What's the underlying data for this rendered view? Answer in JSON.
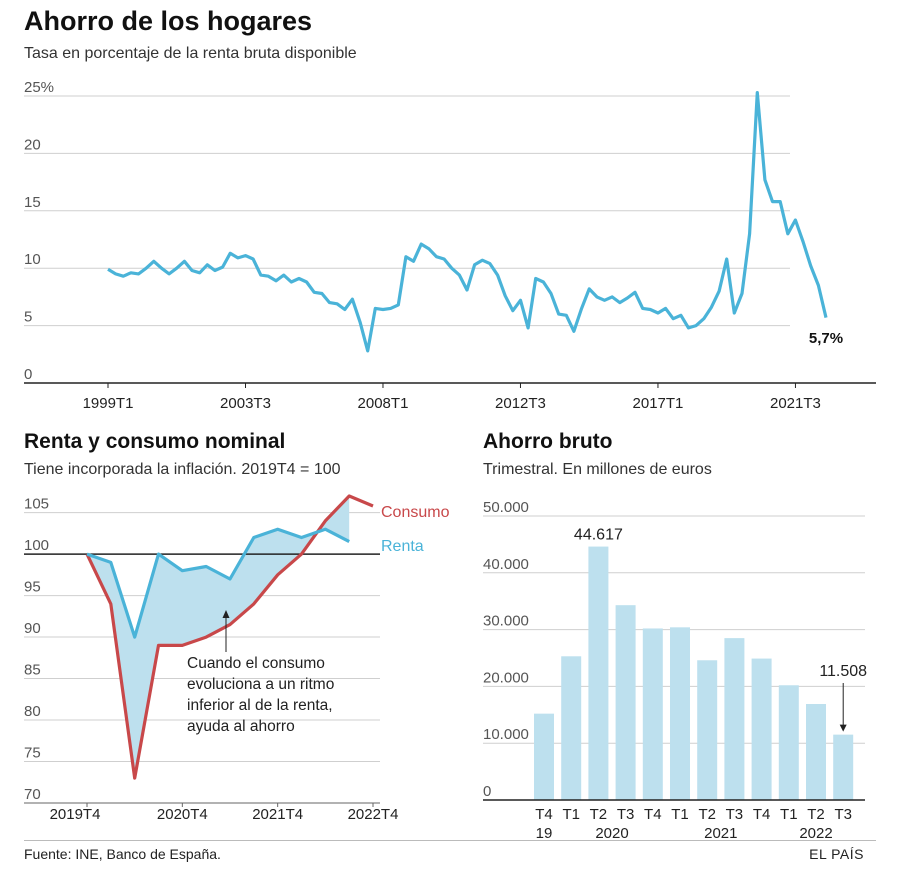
{
  "chart_data": [
    {
      "type": "line",
      "title": "Ahorro de los hogares",
      "subtitle": "Tasa en porcentaje de la renta bruta disponible",
      "ylim": [
        0,
        25
      ],
      "yticks": [
        "25%",
        "20",
        "15",
        "10",
        "5",
        "0"
      ],
      "ytick_values": [
        25,
        20,
        15,
        10,
        5,
        0
      ],
      "xtick_labels": [
        "1999T1",
        "2003T3",
        "2008T1",
        "2012T3",
        "2017T1",
        "2021T3"
      ],
      "xtick_indices": [
        0,
        18,
        36,
        54,
        72,
        90
      ],
      "end_label": "5,7%",
      "color": "#4ab3d8",
      "values": [
        9.9,
        9.5,
        9.3,
        9.6,
        9.5,
        10.0,
        10.6,
        10.0,
        9.5,
        10.0,
        10.6,
        9.8,
        9.6,
        10.3,
        9.8,
        10.1,
        11.3,
        10.9,
        11.1,
        10.8,
        9.4,
        9.3,
        8.9,
        9.4,
        8.8,
        9.1,
        8.8,
        7.9,
        7.8,
        7.0,
        6.9,
        6.4,
        7.3,
        5.3,
        2.8,
        6.5,
        6.4,
        6.5,
        6.8,
        11.0,
        10.6,
        12.1,
        11.7,
        11.0,
        10.8,
        10.0,
        9.4,
        8.1,
        10.3,
        10.7,
        10.4,
        9.4,
        7.6,
        6.3,
        7.2,
        4.8,
        9.1,
        8.8,
        7.8,
        6.0,
        5.9,
        4.5,
        6.5,
        8.2,
        7.5,
        7.2,
        7.5,
        7.0,
        7.4,
        7.9,
        6.5,
        6.4,
        6.1,
        6.5,
        5.6,
        5.9,
        4.8,
        5.0,
        5.6,
        6.6,
        8.0,
        10.8,
        6.1,
        7.8,
        13.0,
        25.3,
        17.7,
        15.8,
        15.8,
        13.0,
        14.2,
        12.3,
        10.2,
        8.5,
        5.7
      ]
    },
    {
      "type": "area",
      "title": "Renta y consumo nominal",
      "subtitle": "Tiene incorporada la inflación. 2019T4 = 100",
      "ylim": [
        70,
        107
      ],
      "yticks": [
        "105",
        "100",
        "95",
        "90",
        "85",
        "80",
        "75",
        "70"
      ],
      "ytick_values": [
        105,
        100,
        95,
        90,
        85,
        80,
        75,
        70
      ],
      "xtick_labels": [
        "2019T4",
        "2020T4",
        "2021T4",
        "2022T4"
      ],
      "xtick_indices": [
        0,
        4,
        8,
        12
      ],
      "series": [
        {
          "name": "Consumo",
          "color": "#c8484a",
          "values": [
            100,
            94,
            73,
            89,
            89,
            90,
            91.5,
            94,
            97.5,
            100,
            104,
            107,
            105.8
          ]
        },
        {
          "name": "Renta",
          "color": "#4ab3d8",
          "values": [
            100,
            99,
            90,
            100,
            98,
            98.5,
            97,
            102,
            103,
            102,
            103,
            101.5
          ]
        }
      ],
      "annotation": [
        "Cuando el consumo",
        "evoluciona a un ritmo",
        "inferior al de la renta,",
        "ayuda al ahorro"
      ]
    },
    {
      "type": "bar",
      "title": "Ahorro bruto",
      "subtitle": "Trimestral. En millones de euros",
      "ylim": [
        0,
        50000
      ],
      "yticks": [
        "50.000",
        "40.000",
        "30.000",
        "20.000",
        "10.000",
        "0"
      ],
      "ytick_values": [
        50000,
        40000,
        30000,
        20000,
        10000,
        0
      ],
      "categories": [
        "T4",
        "T1",
        "T2",
        "T3",
        "T4",
        "T1",
        "T2",
        "T3",
        "T4",
        "T1",
        "T2",
        "T3"
      ],
      "year_labels": [
        {
          "label": "19",
          "index": 0
        },
        {
          "label": "2020",
          "index": 2.5
        },
        {
          "label": "2021",
          "index": 6.5
        },
        {
          "label": "2022",
          "index": 10
        }
      ],
      "values": [
        15200,
        25300,
        44617,
        34300,
        30200,
        30400,
        24600,
        28500,
        24900,
        20200,
        16900,
        11508
      ],
      "color": "#bde0ee",
      "value_labels": [
        {
          "index": 2,
          "text": "44.617"
        },
        {
          "index": 11,
          "text": "11.508"
        }
      ]
    }
  ],
  "footer": {
    "source": "Fuente: INE, Banco de España.",
    "brand": "EL PAÍS"
  }
}
